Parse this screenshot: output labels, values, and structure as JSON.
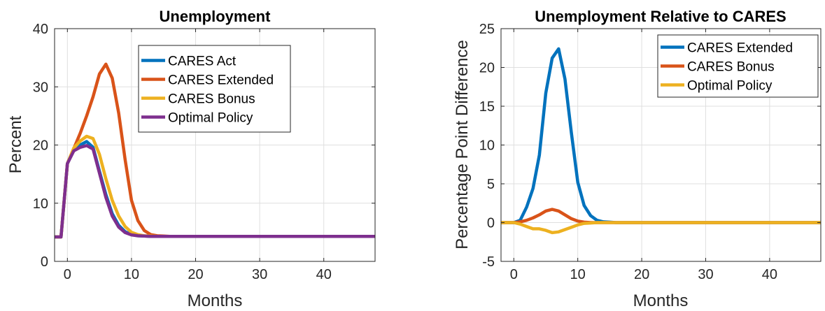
{
  "chart_data": [
    {
      "type": "line",
      "title": "Unemployment",
      "xlabel": "Months",
      "ylabel": "Percent",
      "xlim": [
        -2,
        48
      ],
      "ylim": [
        0,
        40
      ],
      "xticks": [
        0,
        10,
        20,
        30,
        40
      ],
      "yticks": [
        0,
        10,
        20,
        30,
        40
      ],
      "grid": true,
      "legend_position": "top-right",
      "x": [
        -2,
        -1,
        0,
        1,
        2,
        3,
        4,
        5,
        6,
        7,
        8,
        9,
        10,
        11,
        12,
        13,
        14,
        15,
        16,
        17,
        18,
        19,
        20,
        21,
        22,
        23,
        24,
        25,
        26,
        27,
        28,
        29,
        30,
        31,
        32,
        33,
        34,
        35,
        36,
        37,
        38,
        39,
        40,
        41,
        42,
        43,
        44,
        45,
        46,
        47,
        48
      ],
      "series": [
        {
          "name": "CARES Act",
          "color": "#0072BD",
          "values": [
            4.2,
            4.2,
            16.8,
            19.2,
            20.0,
            20.6,
            19.6,
            15.5,
            11.5,
            8.2,
            6.2,
            5.1,
            4.6,
            4.4,
            4.35,
            4.3,
            4.3,
            4.3,
            4.3,
            4.3,
            4.3,
            4.3,
            4.3,
            4.3,
            4.3,
            4.3,
            4.3,
            4.3,
            4.3,
            4.3,
            4.3,
            4.3,
            4.3,
            4.3,
            4.3,
            4.3,
            4.3,
            4.3,
            4.3,
            4.3,
            4.3,
            4.3,
            4.3,
            4.3,
            4.3,
            4.3,
            4.3,
            4.3,
            4.3,
            4.3,
            4.3
          ]
        },
        {
          "name": "CARES Extended",
          "color": "#D95319",
          "values": [
            4.2,
            4.2,
            16.8,
            19.4,
            22.0,
            25.0,
            28.3,
            32.2,
            33.9,
            31.5,
            25.5,
            17.5,
            10.5,
            7.0,
            5.3,
            4.6,
            4.4,
            4.35,
            4.3,
            4.3,
            4.3,
            4.3,
            4.3,
            4.3,
            4.3,
            4.3,
            4.3,
            4.3,
            4.3,
            4.3,
            4.3,
            4.3,
            4.3,
            4.3,
            4.3,
            4.3,
            4.3,
            4.3,
            4.3,
            4.3,
            4.3,
            4.3,
            4.3,
            4.3,
            4.3,
            4.3,
            4.3,
            4.3,
            4.3,
            4.3,
            4.3
          ]
        },
        {
          "name": "CARES Bonus",
          "color": "#EDB120",
          "values": [
            4.2,
            4.2,
            16.8,
            19.5,
            20.7,
            21.5,
            21.1,
            18.4,
            14.2,
            10.5,
            7.8,
            6.0,
            5.0,
            4.6,
            4.4,
            4.35,
            4.3,
            4.3,
            4.3,
            4.3,
            4.3,
            4.3,
            4.3,
            4.3,
            4.3,
            4.3,
            4.3,
            4.3,
            4.3,
            4.3,
            4.3,
            4.3,
            4.3,
            4.3,
            4.3,
            4.3,
            4.3,
            4.3,
            4.3,
            4.3,
            4.3,
            4.3,
            4.3,
            4.3,
            4.3,
            4.3,
            4.3,
            4.3,
            4.3,
            4.3,
            4.3
          ]
        },
        {
          "name": "Optimal Policy",
          "color": "#7E2F8E",
          "values": [
            4.2,
            4.2,
            16.8,
            19.0,
            19.6,
            19.9,
            19.3,
            15.2,
            11.0,
            7.8,
            5.9,
            4.95,
            4.55,
            4.4,
            4.35,
            4.3,
            4.3,
            4.3,
            4.3,
            4.3,
            4.3,
            4.3,
            4.3,
            4.3,
            4.3,
            4.3,
            4.3,
            4.3,
            4.3,
            4.3,
            4.3,
            4.3,
            4.3,
            4.3,
            4.3,
            4.3,
            4.3,
            4.3,
            4.3,
            4.3,
            4.3,
            4.3,
            4.3,
            4.3,
            4.3,
            4.3,
            4.3,
            4.3,
            4.3,
            4.3,
            4.3
          ]
        }
      ]
    },
    {
      "type": "line",
      "title": "Unemployment Relative to CARES",
      "xlabel": "Months",
      "ylabel": "Percentage Point Difference",
      "xlim": [
        -2,
        48
      ],
      "ylim": [
        -5,
        25
      ],
      "xticks": [
        0,
        10,
        20,
        30,
        40
      ],
      "yticks": [
        -5,
        0,
        5,
        10,
        15,
        20,
        25
      ],
      "grid": true,
      "legend_position": "top-right",
      "x": [
        -2,
        -1,
        0,
        1,
        2,
        3,
        4,
        5,
        6,
        7,
        8,
        9,
        10,
        11,
        12,
        13,
        14,
        15,
        16,
        17,
        18,
        19,
        20,
        21,
        22,
        23,
        24,
        25,
        26,
        27,
        28,
        29,
        30,
        31,
        32,
        33,
        34,
        35,
        36,
        37,
        38,
        39,
        40,
        41,
        42,
        43,
        44,
        45,
        46,
        47,
        48
      ],
      "series": [
        {
          "name": "CARES Extended",
          "color": "#0072BD",
          "values": [
            0,
            0,
            0,
            0.3,
            2.0,
            4.4,
            8.7,
            16.7,
            21.2,
            22.4,
            18.5,
            11.6,
            5.2,
            2.2,
            0.9,
            0.3,
            0.1,
            0.05,
            0,
            0,
            0,
            0,
            0,
            0,
            0,
            0,
            0,
            0,
            0,
            0,
            0,
            0,
            0,
            0,
            0,
            0,
            0,
            0,
            0,
            0,
            0,
            0,
            0,
            0,
            0,
            0,
            0,
            0,
            0,
            0,
            0
          ]
        },
        {
          "name": "CARES Bonus",
          "color": "#D95319",
          "values": [
            0,
            0,
            0,
            0.1,
            0.3,
            0.6,
            1.0,
            1.5,
            1.7,
            1.5,
            1.0,
            0.5,
            0.2,
            0.05,
            0,
            0,
            0,
            0,
            0,
            0,
            0,
            0,
            0,
            0,
            0,
            0,
            0,
            0,
            0,
            0,
            0,
            0,
            0,
            0,
            0,
            0,
            0,
            0,
            0,
            0,
            0,
            0,
            0,
            0,
            0,
            0,
            0,
            0,
            0,
            0,
            0
          ]
        },
        {
          "name": "Optimal Policy",
          "color": "#EDB120",
          "values": [
            0,
            0,
            0,
            -0.2,
            -0.5,
            -0.8,
            -0.8,
            -1.0,
            -1.3,
            -1.2,
            -0.9,
            -0.6,
            -0.3,
            -0.1,
            -0.05,
            0,
            0,
            0,
            0,
            0,
            0,
            0,
            0,
            0,
            0,
            0,
            0,
            0,
            0,
            0,
            0,
            0,
            0,
            0,
            0,
            0,
            0,
            0,
            0,
            0,
            0,
            0,
            0,
            0,
            0,
            0,
            0,
            0,
            0,
            0,
            0
          ]
        }
      ]
    }
  ]
}
